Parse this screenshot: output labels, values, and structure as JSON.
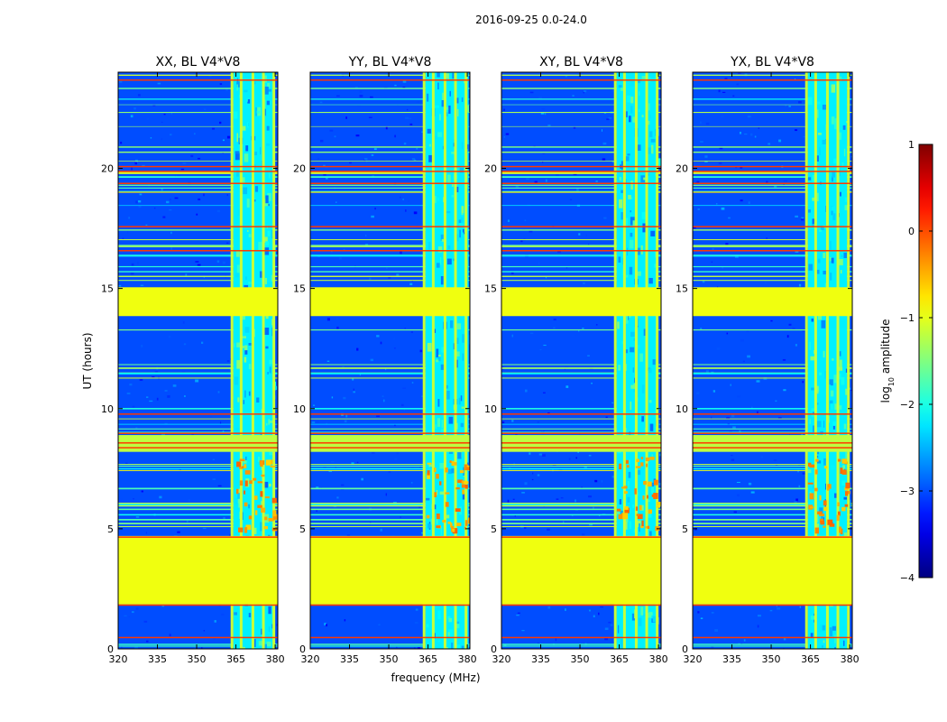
{
  "chart_data": {
    "type": "heatmap",
    "suptitle": "2016-09-25 0.0-24.0",
    "xlabel": "frequency (MHz)",
    "ylabel": "UT (hours)",
    "xlim": [
      320,
      381
    ],
    "ylim": [
      0,
      24
    ],
    "xticks": [
      320,
      335,
      350,
      365,
      380
    ],
    "xtick_labels": [
      "320",
      "335",
      "350",
      "365",
      "380"
    ],
    "yticks": [
      0,
      5,
      10,
      15,
      20
    ],
    "ytick_labels": [
      "0",
      "5",
      "10",
      "15",
      "20"
    ],
    "panels": [
      {
        "title": "XX, BL V4*V8"
      },
      {
        "title": "YY, BL V4*V8"
      },
      {
        "title": "XY, BL V4*V8"
      },
      {
        "title": "YX, BL V4*V8"
      }
    ],
    "colorbar": {
      "label_main": "log",
      "label_sub": "10",
      "label_rest": " amplitude",
      "range": [
        -4,
        1
      ],
      "ticks": [
        1,
        0,
        -1,
        -2,
        -3,
        -4
      ],
      "tick_labels": [
        "1",
        "0",
        "−1",
        "−2",
        "−3",
        "−4"
      ],
      "colormap": "jet"
    },
    "flagged_ut_ranges": [
      [
        1.85,
        4.7
      ],
      [
        13.85,
        15.05
      ]
    ],
    "flagged_value": -0.95,
    "background_value": -3.0,
    "active_band_mhz": [
      364,
      381
    ],
    "active_band_end_mhz_per_panel": [
      379.5,
      380.5,
      379.5,
      379
    ],
    "narrowband_channels_mhz": [
      363.5,
      367,
      371.5,
      375.5,
      379.5
    ]
  }
}
